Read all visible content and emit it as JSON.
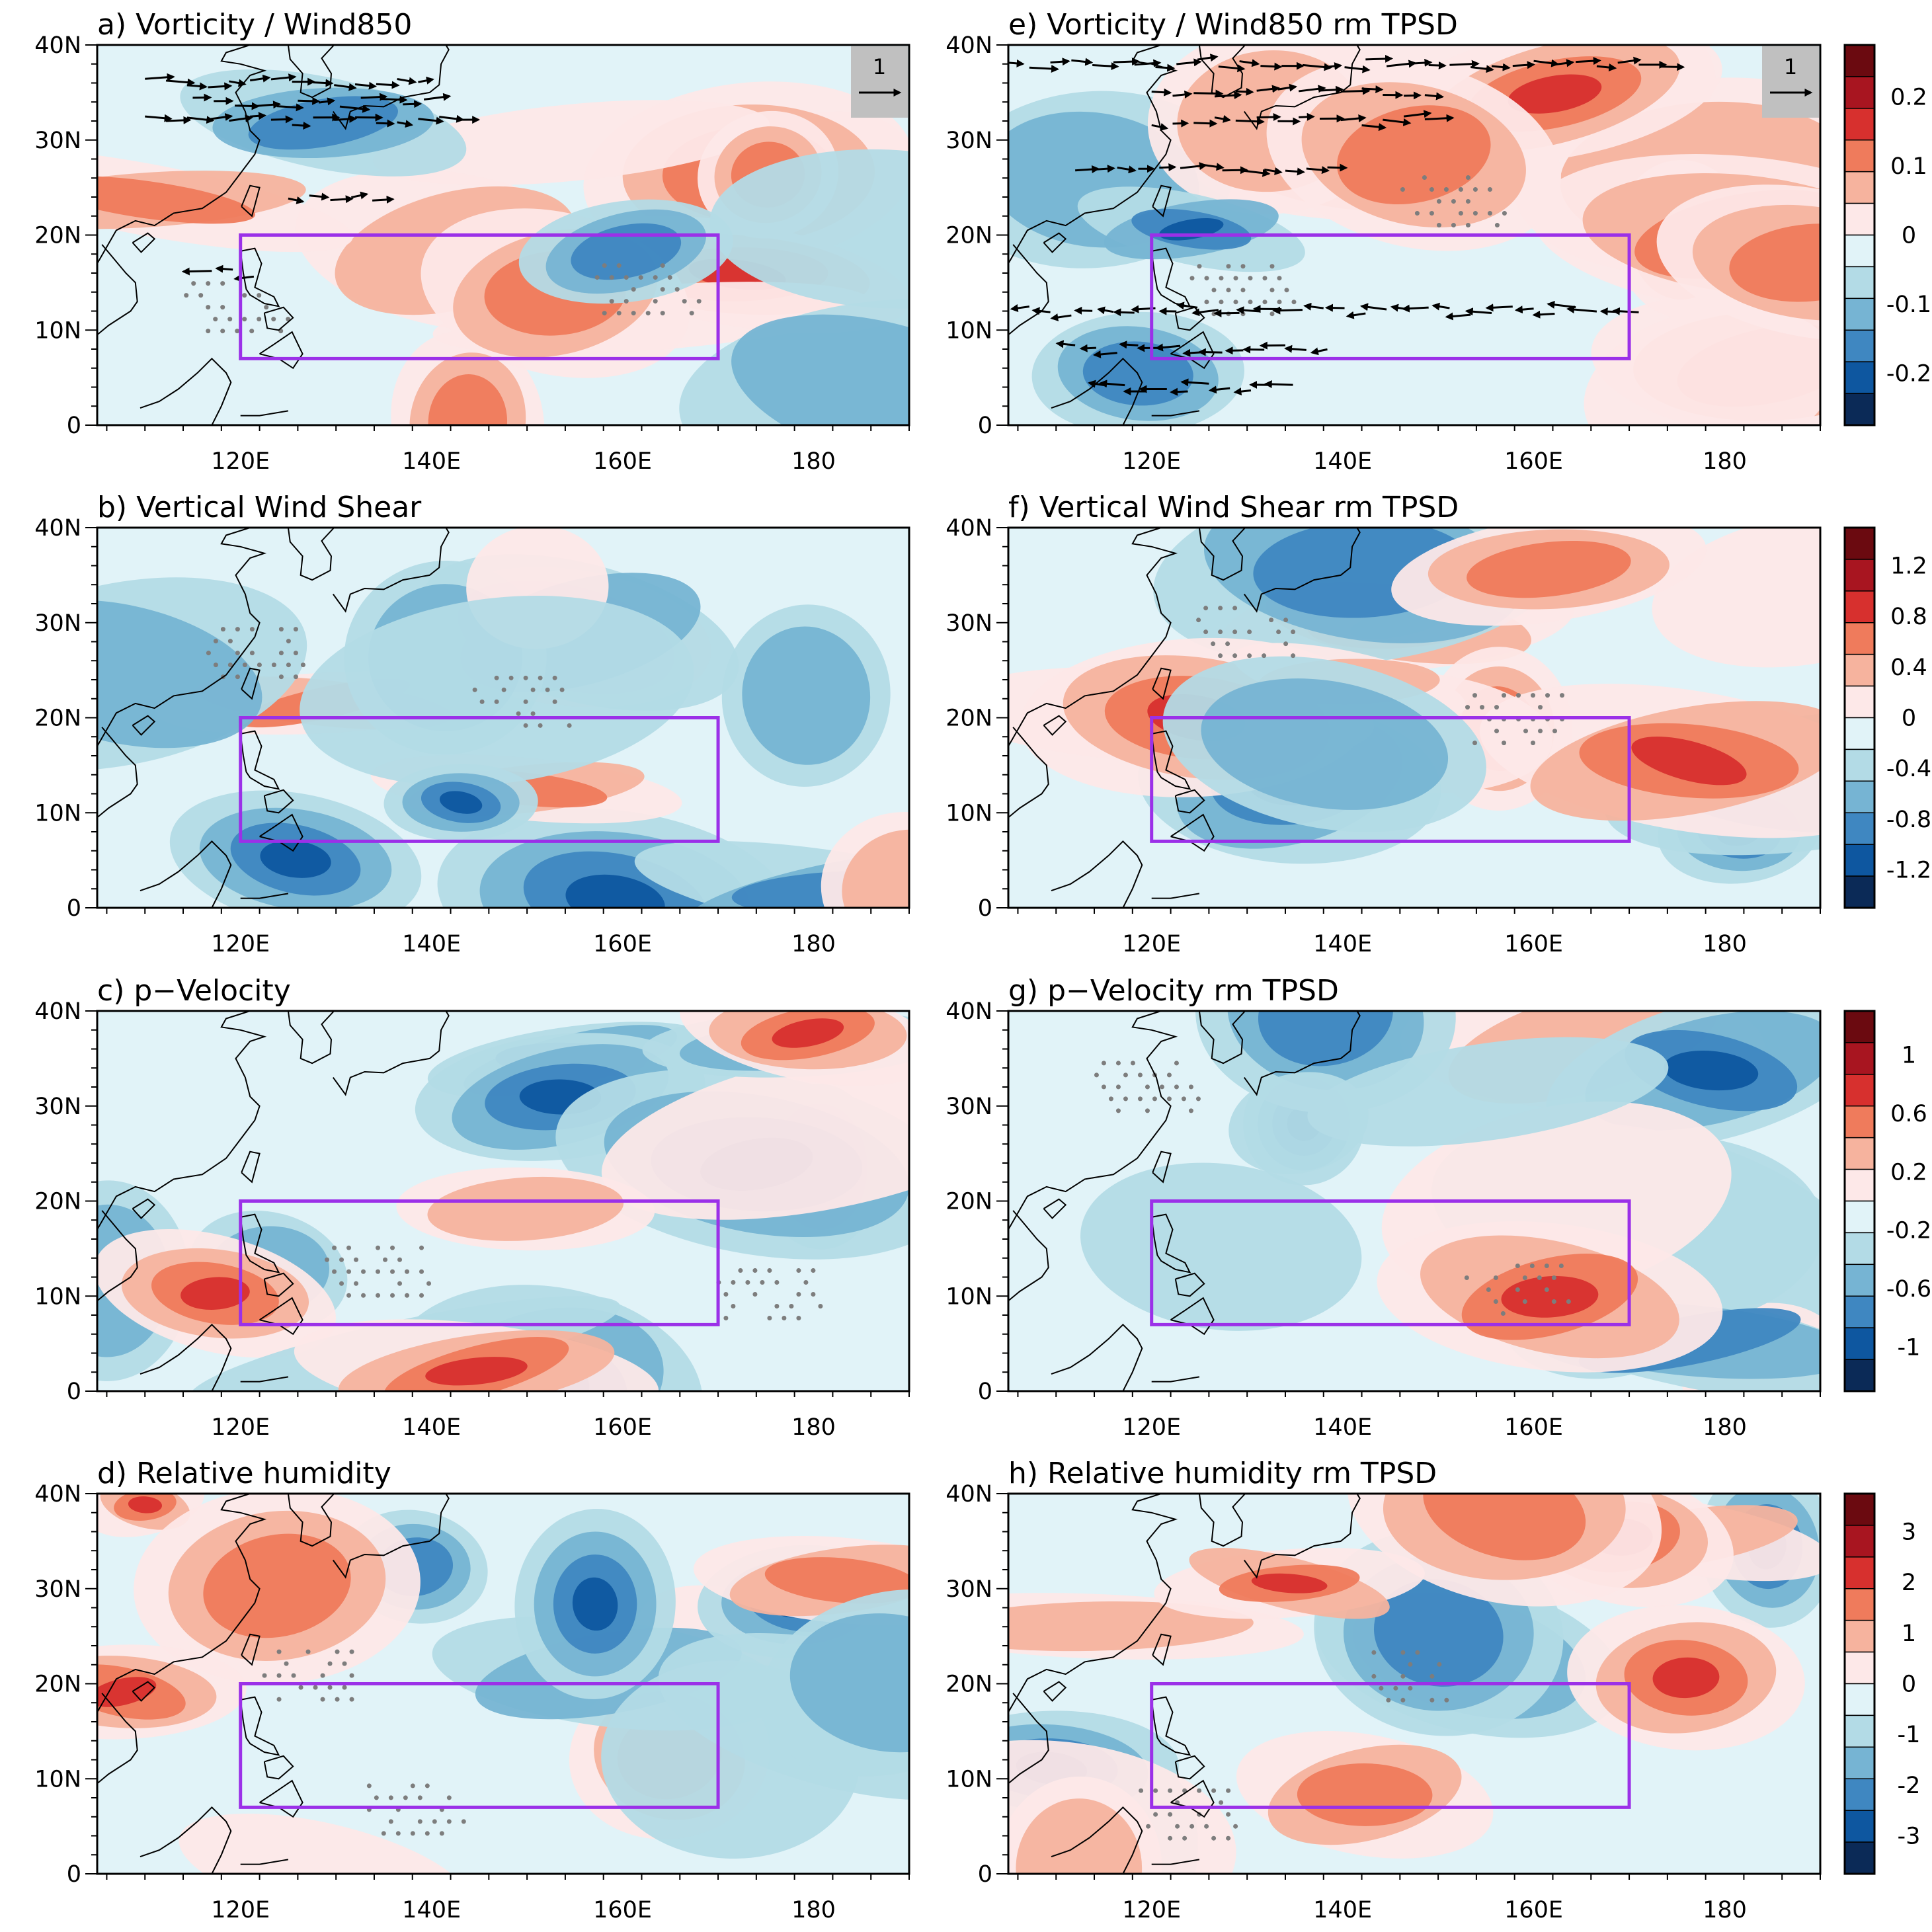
{
  "figure": {
    "axes": {
      "x_ticks": [
        "120E",
        "140E",
        "160E",
        "180"
      ],
      "y_ticks": [
        "0",
        "10N",
        "20N",
        "30N",
        "40N"
      ],
      "lon_range": [
        105,
        190
      ],
      "lat_range": [
        0,
        40
      ]
    },
    "target_box": {
      "lon": [
        120,
        170
      ],
      "lat": [
        7,
        20
      ],
      "color": "#9b30e8"
    },
    "panels": [
      {
        "id": "a",
        "title": "a) Vorticity / Wind850",
        "vectors": true,
        "vector_ref": "1",
        "seed": 11
      },
      {
        "id": "e",
        "title": "e) Vorticity / Wind850 rm TPSD",
        "vectors": true,
        "vector_ref": "1",
        "seed": 23
      },
      {
        "id": "b",
        "title": "b) Vertical Wind Shear",
        "vectors": false,
        "seed": 37
      },
      {
        "id": "f",
        "title": "f) Vertical Wind Shear rm TPSD",
        "vectors": false,
        "seed": 41
      },
      {
        "id": "c",
        "title": "c) p−Velocity",
        "vectors": false,
        "seed": 53
      },
      {
        "id": "g",
        "title": "g) p−Velocity rm TPSD",
        "vectors": false,
        "seed": 67
      },
      {
        "id": "d",
        "title": "d) Relative humidity",
        "vectors": false,
        "seed": 71
      },
      {
        "id": "h",
        "title": "h) Relative humidity rm TPSD",
        "vectors": false,
        "seed": 89
      }
    ],
    "colorbars": [
      {
        "row": 0,
        "labels": [
          "0.2",
          "0.1",
          "0",
          "-0.1",
          "-0.2"
        ]
      },
      {
        "row": 1,
        "labels": [
          "1.2",
          "0.8",
          "0.4",
          "0",
          "-0.4",
          "-0.8",
          "-1.2"
        ]
      },
      {
        "row": 2,
        "labels": [
          "1",
          "0.6",
          "0.2",
          "-0.2",
          "-0.6",
          "-1"
        ]
      },
      {
        "row": 3,
        "labels": [
          "3",
          "2",
          "1",
          "0",
          "-1",
          "-2",
          "-3"
        ]
      }
    ],
    "palette": [
      "#0b2a57",
      "#0e57a0",
      "#3f87c1",
      "#76b4d3",
      "#b3dbe6",
      "#e1f3f8",
      "#fde8e8",
      "#f6b39e",
      "#ef7b5c",
      "#d7302e",
      "#a81520",
      "#6b0a10"
    ],
    "stipple_color": "#7d7d7d"
  }
}
